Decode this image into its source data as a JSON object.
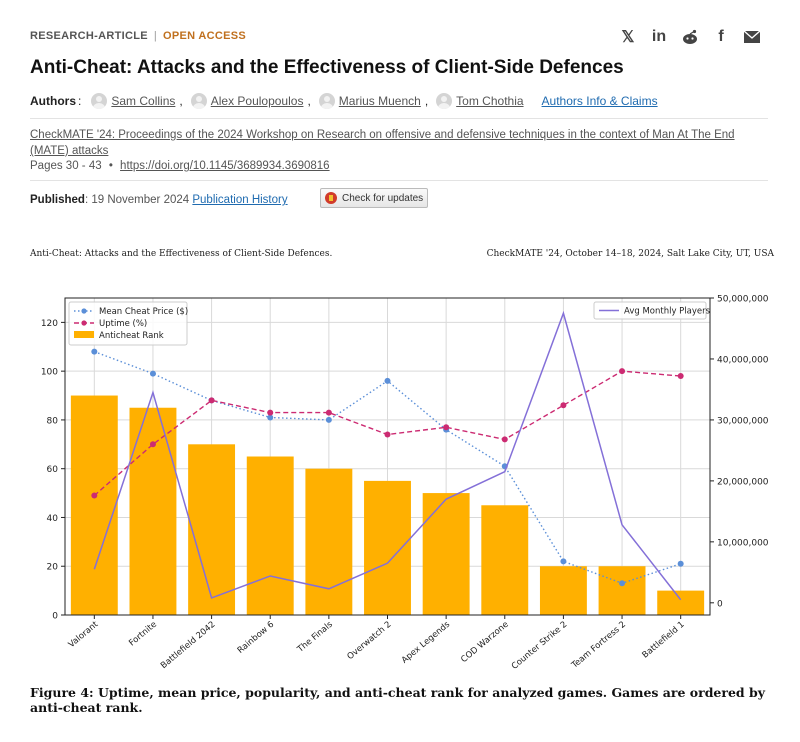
{
  "header": {
    "kind": "RESEARCH-ARTICLE",
    "access": "OPEN ACCESS",
    "title": "Anti-Cheat: Attacks and the Effectiveness of Client-Side Defences",
    "authors_label": "Authors",
    "authors": [
      "Sam Collins",
      "Alex Poulopoulos",
      "Marius Muench",
      "Tom Chothia"
    ],
    "authors_info": "Authors Info & Claims",
    "proceedings": "CheckMATE '24: Proceedings of the 2024 Workshop on Research on offensive and defensive techniques in the context of Man At The End (MATE) attacks",
    "pages": "Pages 30 - 43",
    "doi": "https://doi.org/10.1145/3689934.3690816",
    "published_label": "Published",
    "published_date": "19 November 2024",
    "publication_history": "Publication History",
    "check_updates": "Check for updates"
  },
  "share_icons": [
    "x-icon",
    "linkedin-icon",
    "reddit-icon",
    "facebook-icon",
    "email-icon"
  ],
  "running_head": {
    "left": "Anti-Cheat: Attacks and the Effectiveness of Client-Side Defences.",
    "right": "CheckMATE '24, October 14–18, 2024, Salt Lake City, UT, USA"
  },
  "caption": "Figure 4: Uptime, mean price, popularity, and anti-cheat rank for analyzed games. Games are ordered by anti-cheat rank.",
  "chart_data": {
    "type": "bar",
    "categories": [
      "Valorant",
      "Fortnite",
      "Battlefield 2042",
      "Rainbow 6",
      "The Finals",
      "Overwatch 2",
      "Apex Legends",
      "COD Warzone",
      "Counter Strike 2",
      "Team Fortress 2",
      "Battlefield 1"
    ],
    "ylim": [
      0,
      130
    ],
    "yticks": [
      0,
      20,
      40,
      60,
      80,
      100,
      120
    ],
    "y2lim": [
      -2000000,
      50000000
    ],
    "y2ticks": [
      0,
      10000000,
      20000000,
      30000000,
      40000000,
      50000000
    ],
    "y2tick_labels": [
      "0",
      "10,000,000",
      "20,000,000",
      "30,000,000",
      "40,000,000",
      "50,000,000"
    ],
    "grid": true,
    "legend_left": "top-left",
    "legend_right": "top-right",
    "series": [
      {
        "name": "Anticheat Rank",
        "kind": "bar",
        "axis": "left",
        "color": "#ffb000",
        "values": [
          90,
          85,
          70,
          65,
          60,
          55,
          50,
          45,
          20,
          20,
          10
        ]
      },
      {
        "name": "Mean Cheat Price ($)",
        "kind": "line-dotted",
        "axis": "left",
        "color": "#5b8fd8",
        "values": [
          108,
          99,
          88,
          81,
          80,
          96,
          76,
          61,
          22,
          13,
          21
        ]
      },
      {
        "name": "Uptime (%)",
        "kind": "line-dashed",
        "axis": "left",
        "color": "#cc2b72",
        "values": [
          49,
          70,
          88,
          83,
          83,
          74,
          77,
          72,
          86,
          100,
          98
        ]
      },
      {
        "name": "Avg Monthly Players",
        "kind": "line",
        "axis": "right",
        "color": "#8470d8",
        "values": [
          5500000,
          34500000,
          800000,
          4400000,
          2300000,
          6500000,
          17000000,
          21500000,
          47500000,
          12800000,
          500000
        ]
      }
    ]
  }
}
